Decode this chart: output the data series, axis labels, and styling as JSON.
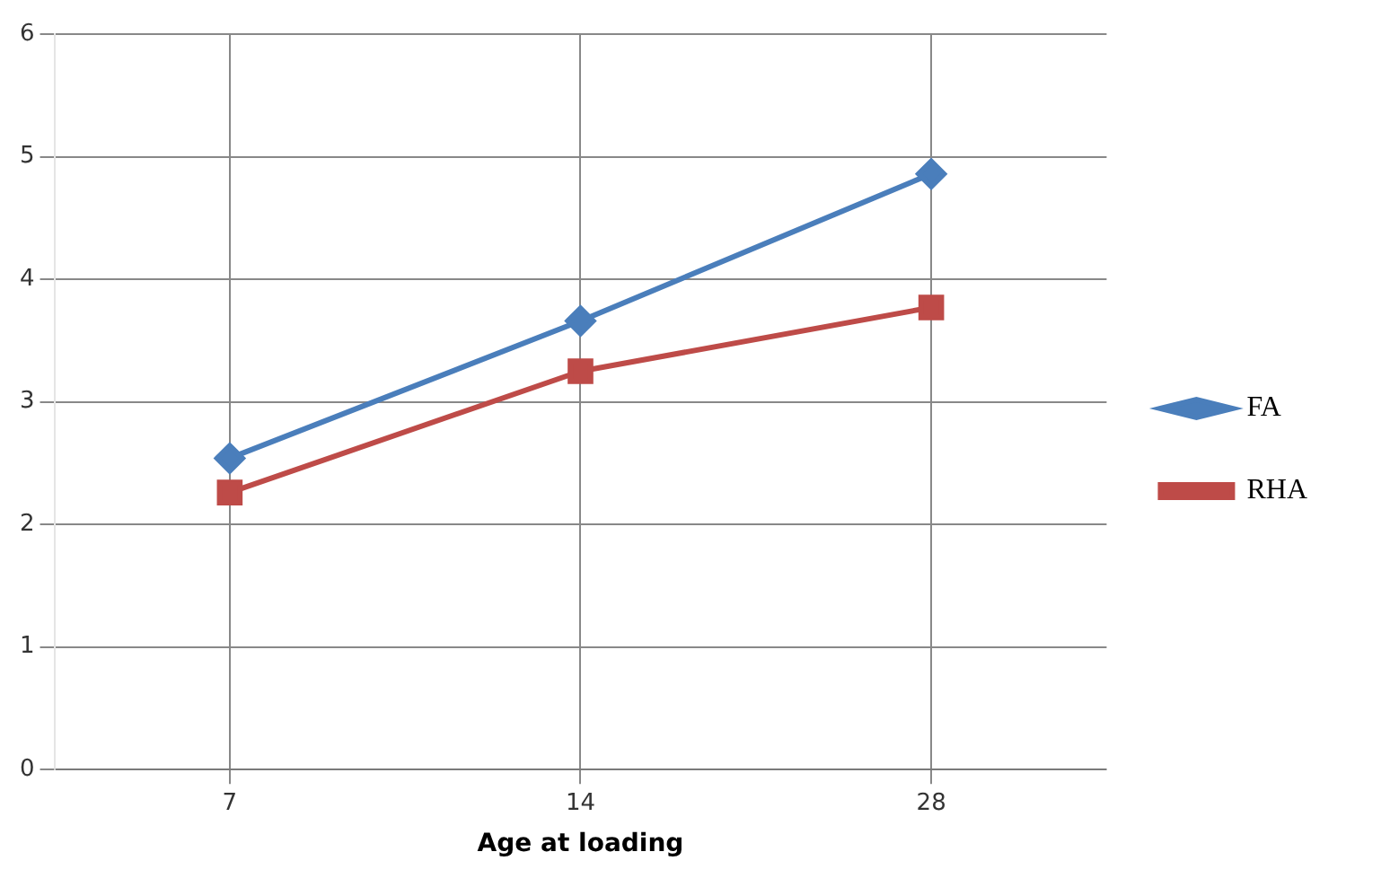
{
  "chart_data": {
    "type": "line",
    "xlabel": "Age at loading",
    "categories": [
      "7",
      "14",
      "28"
    ],
    "series": [
      {
        "name": "FA",
        "color": "#4a7ebb",
        "values": [
          2.54,
          3.66,
          4.86
        ],
        "marker": "diamond"
      },
      {
        "name": "RHA",
        "color": "#be4b48",
        "values": [
          2.26,
          3.25,
          3.77
        ],
        "marker": "square"
      }
    ],
    "ylim": [
      0,
      6
    ],
    "yticks": [
      0,
      1,
      2,
      3,
      4,
      5,
      6
    ],
    "grid": true,
    "legend": "right",
    "line_style": "solid"
  }
}
